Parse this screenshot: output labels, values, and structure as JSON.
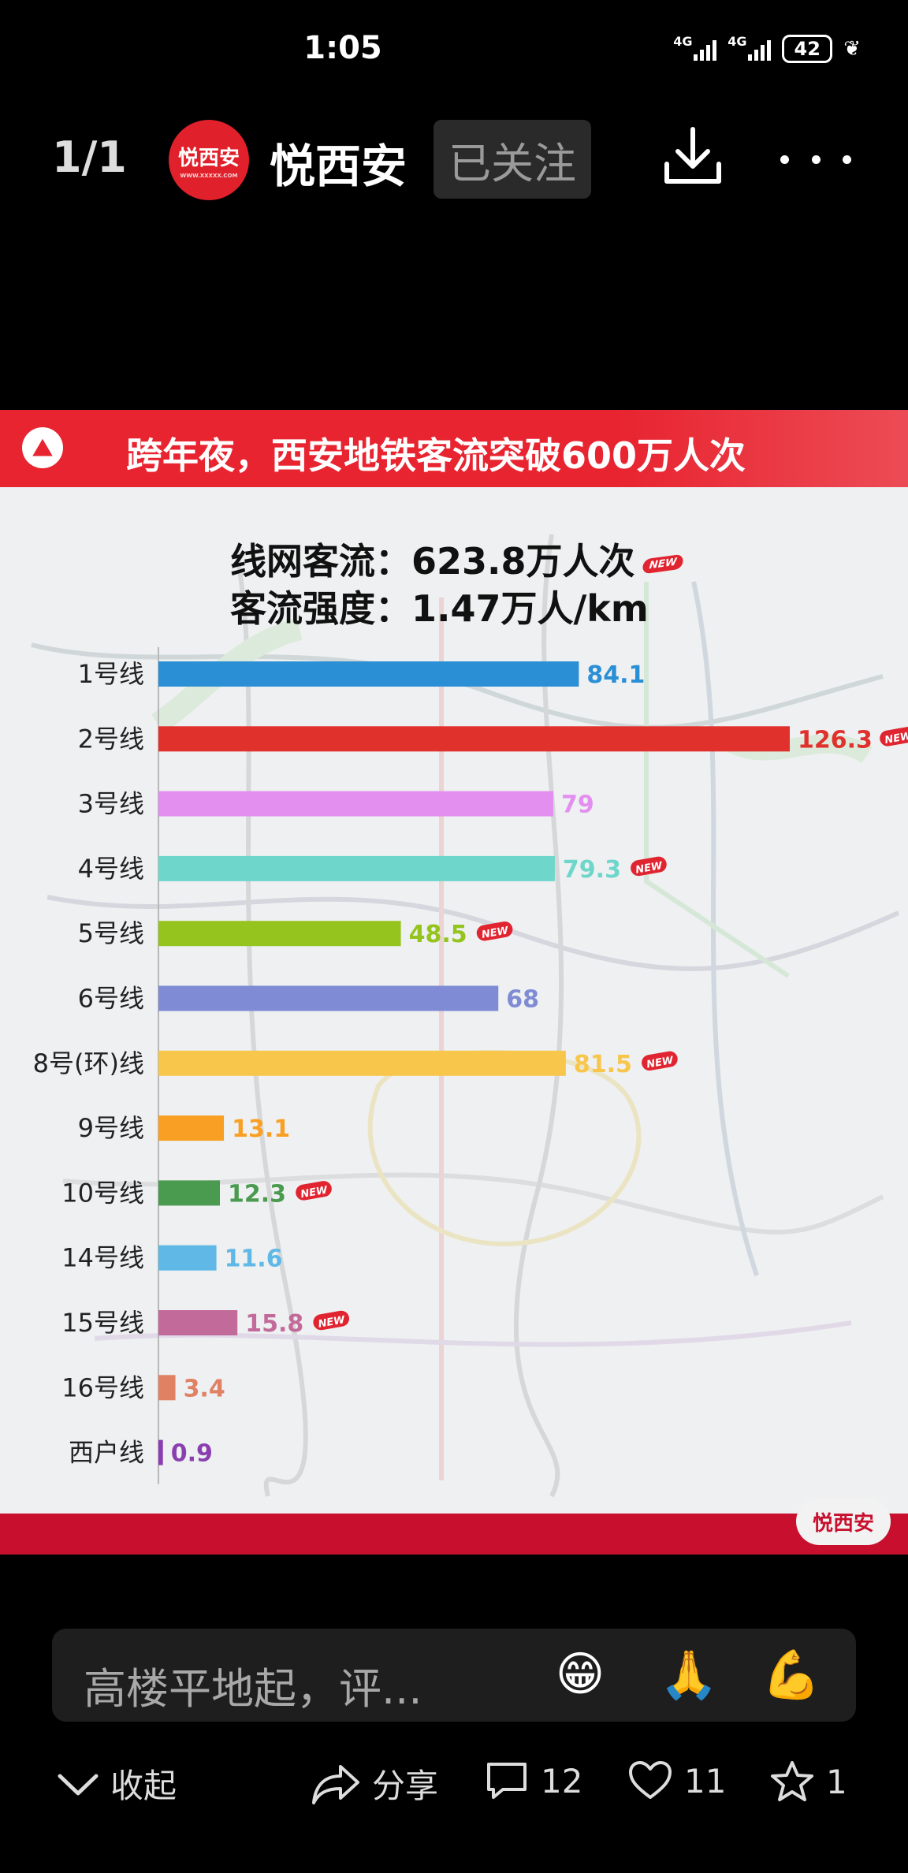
{
  "status_bar": {
    "time": "1:05",
    "network1": "4G",
    "network2": "4G",
    "battery": "42"
  },
  "header": {
    "page_counter": "1/1",
    "account_name": "悦西安",
    "avatar_text": "悦西安",
    "avatar_subtext": "WWW.XXXXX.COM",
    "follow_label": "已关注",
    "download_icon": "download-icon",
    "more_icon": "more-icon"
  },
  "infographic": {
    "banner_title": "跨年夜，西安地铁客流突破600万人次",
    "stat_line1": "线网客流：623.8万人次",
    "stat_line2": "客流强度：1.47万人/km",
    "new_tag": "NEW",
    "footer_logo": "悦西安",
    "accent_color": "#e82430"
  },
  "chart_data": {
    "type": "bar",
    "orientation": "horizontal",
    "categories": [
      "1号线",
      "2号线",
      "3号线",
      "4号线",
      "5号线",
      "6号线",
      "8号(环)线",
      "9号线",
      "10号线",
      "14号线",
      "15号线",
      "16号线",
      "西户线"
    ],
    "values": [
      84.1,
      126.3,
      79,
      79.3,
      48.5,
      68,
      81.5,
      13.1,
      12.3,
      11.6,
      15.8,
      3.4,
      0.9
    ],
    "value_labels": [
      "84.1",
      "126.3",
      "79",
      "79.3",
      "48.5",
      "68",
      "81.5",
      "13.1",
      "12.3",
      "11.6",
      "15.8",
      "3.4",
      "0.9"
    ],
    "colors": [
      "#2b8fd6",
      "#e0312c",
      "#e38ff0",
      "#6fd6cb",
      "#95c41f",
      "#7f8bd4",
      "#f8c64b",
      "#f9a024",
      "#4a9a50",
      "#5fb8e6",
      "#c26a9a",
      "#e08163",
      "#8a3fb0"
    ],
    "is_new": [
      false,
      true,
      false,
      true,
      true,
      false,
      true,
      false,
      true,
      false,
      true,
      false,
      false
    ],
    "xlim": [
      0,
      130
    ],
    "grid": false,
    "legend": "none"
  },
  "comment_bar": {
    "placeholder": "高楼平地起，评...",
    "emojis": [
      "😁",
      "🙏",
      "💪"
    ]
  },
  "actions": {
    "collapse_label": "收起",
    "share_label": "分享",
    "comment_count": "12",
    "like_count": "11",
    "favorite_count": "1"
  }
}
